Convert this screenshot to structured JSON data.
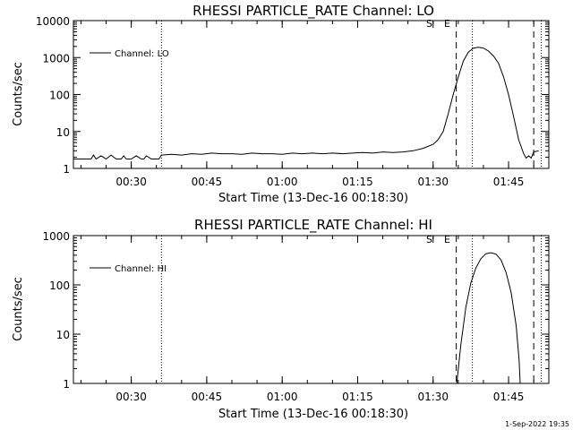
{
  "chart_data": [
    {
      "type": "line",
      "title": "RHESSI PARTICLE_RATE Channel: LO",
      "xlabel": "Start Time (13-Dec-16 00:18:30)",
      "ylabel": "Counts/sec",
      "y_scale": "log",
      "ylim": [
        1,
        10000
      ],
      "y_ticks": [
        "1",
        "10",
        "100",
        "1000",
        "10000"
      ],
      "x_ticks": [
        "00:30",
        "00:45",
        "01:00",
        "01:15",
        "01:30",
        "01:45"
      ],
      "xlim_minutes": [
        18.5,
        113
      ],
      "legend": "top-left",
      "series": [
        {
          "name": "Channel: LO",
          "x": [
            18.5,
            22,
            22.5,
            23,
            24,
            25,
            26,
            27,
            28,
            28.5,
            29,
            30,
            31,
            32,
            32.5,
            33,
            34,
            35,
            35.5,
            36,
            38,
            40,
            42,
            44,
            46,
            48,
            50,
            52,
            54,
            56,
            58,
            60,
            62,
            64,
            66,
            68,
            70,
            72,
            74,
            76,
            78,
            80,
            82,
            84,
            86,
            88,
            90,
            91,
            92,
            93,
            94,
            95,
            96,
            97,
            98,
            99,
            100,
            101,
            102,
            103,
            104,
            105,
            106,
            107,
            108,
            108.5,
            109,
            109.5,
            110,
            111
          ],
          "y": [
            1.8,
            1.8,
            2.3,
            1.8,
            2.2,
            1.8,
            2.3,
            1.8,
            1.8,
            2.2,
            1.8,
            1.8,
            2.2,
            1.8,
            1.8,
            2.2,
            1.8,
            1.8,
            1.8,
            2.3,
            2.4,
            2.3,
            2.5,
            2.4,
            2.6,
            2.5,
            2.5,
            2.4,
            2.6,
            2.5,
            2.5,
            2.4,
            2.6,
            2.5,
            2.6,
            2.5,
            2.6,
            2.5,
            2.6,
            2.7,
            2.6,
            2.8,
            2.7,
            2.8,
            3.0,
            3.5,
            4.5,
            6.0,
            10,
            30,
            100,
            300,
            800,
            1400,
            1800,
            1900,
            1800,
            1500,
            1100,
            700,
            300,
            100,
            25,
            6,
            2.5,
            1.9,
            2.2,
            1.9,
            2.8,
            3.0
          ]
        }
      ],
      "markers": {
        "S": 94.6,
        "E": 97.8
      }
    },
    {
      "type": "line",
      "title": "RHESSI PARTICLE_RATE Channel: HI",
      "xlabel": "Start Time (13-Dec-16 00:18:30)",
      "ylabel": "Counts/sec",
      "y_scale": "log",
      "ylim": [
        1,
        1000
      ],
      "y_ticks": [
        "1",
        "10",
        "100",
        "1000"
      ],
      "x_ticks": [
        "00:30",
        "00:45",
        "01:00",
        "01:15",
        "01:30",
        "01:45"
      ],
      "xlim_minutes": [
        18.5,
        113
      ],
      "legend": "top-left",
      "series": [
        {
          "name": "Channel: HI",
          "x": [
            94.7,
            95.5,
            96.5,
            97.5,
            98.5,
            99.5,
            100.5,
            101.5,
            102.5,
            103.5,
            104.5,
            105.5,
            106.5,
            107.1,
            107.3
          ],
          "y": [
            1,
            6,
            35,
            110,
            220,
            340,
            430,
            450,
            420,
            320,
            180,
            70,
            15,
            3,
            1
          ]
        }
      ],
      "markers": {
        "S": 94.6,
        "E": 97.8
      }
    }
  ],
  "footer": {
    "timestamp": "1-Sep-2022 19:35"
  }
}
